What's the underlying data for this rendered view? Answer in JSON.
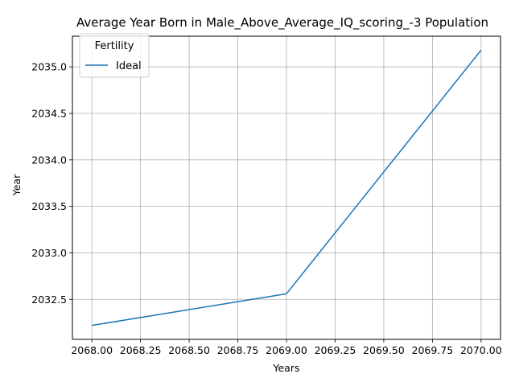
{
  "chart_data": {
    "type": "line",
    "title": "Average Year Born in Male_Above_Average_IQ_scoring_-3 Population",
    "xlabel": "Years",
    "ylabel": "Year",
    "xlim": [
      2067.9,
      2070.1
    ],
    "ylim": [
      2032.07,
      2035.33
    ],
    "xticks": [
      2068.0,
      2068.25,
      2068.5,
      2068.75,
      2069.0,
      2069.25,
      2069.5,
      2069.75,
      2070.0
    ],
    "xtick_labels": [
      "2068.00",
      "2068.25",
      "2068.50",
      "2068.75",
      "2069.00",
      "2069.25",
      "2069.50",
      "2069.75",
      "2070.00"
    ],
    "yticks": [
      2032.5,
      2033.0,
      2033.5,
      2034.0,
      2034.5,
      2035.0
    ],
    "ytick_labels": [
      "2032.5",
      "2033.0",
      "2033.5",
      "2034.0",
      "2034.5",
      "2035.0"
    ],
    "grid": true,
    "legend": {
      "title": "Fertility",
      "placement": "upper-left"
    },
    "series": [
      {
        "name": "Ideal",
        "color": "#1f77b4",
        "x": [
          2068,
          2069,
          2070
        ],
        "y": [
          2032.22,
          2032.56,
          2035.18
        ]
      }
    ]
  }
}
